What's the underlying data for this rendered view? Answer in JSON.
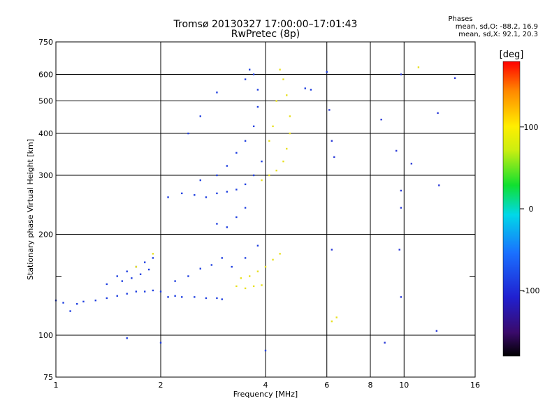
{
  "header": {
    "title": "Tromsø 20130327 17:00:00–17:01:43",
    "subtitle": "RwPretec (8p)",
    "phase_heading": "Phases",
    "phase_o": "mean, sd,O: -88.2, 16.9",
    "phase_x": "mean, sd,X:  92.1, 20.3"
  },
  "colorbar": {
    "label": "[deg]",
    "ticks": [
      {
        "value": 100,
        "label": "100"
      },
      {
        "value": 0,
        "label": "0"
      },
      {
        "value": -100,
        "label": "-100"
      }
    ],
    "range": [
      -180,
      180
    ],
    "colormap": "rainbow (black-purple-blue-cyan-green-yellow-orange-red)"
  },
  "chart_data": {
    "type": "scatter",
    "title": "Tromsø 20130327 17:00:00–17:01:43",
    "subtitle": "RwPretec (8p)",
    "xlabel": "Frequency [MHz]",
    "ylabel": "Stationary phase Virtual Height [km]",
    "x_scale": "log",
    "y_scale": "log",
    "xlim": [
      1,
      16
    ],
    "ylim": [
      75,
      750
    ],
    "x_ticks": [
      1,
      2,
      4,
      6,
      8,
      10,
      16
    ],
    "y_ticks": [
      75,
      100,
      200,
      300,
      400,
      500,
      600,
      750
    ],
    "x_grid": [
      2,
      4,
      6,
      8,
      10
    ],
    "y_grid": [
      100,
      200,
      300,
      400,
      500,
      600
    ],
    "y_minor": [
      150
    ],
    "grid": true,
    "series": [
      {
        "name": "O",
        "color": "#1f3fe0",
        "phase_mean": -88.2,
        "phase_sd": 16.9,
        "points": [
          [
            1.0,
            127
          ],
          [
            1.05,
            125
          ],
          [
            1.1,
            118
          ],
          [
            1.15,
            124
          ],
          [
            1.2,
            126
          ],
          [
            1.3,
            127
          ],
          [
            1.4,
            129
          ],
          [
            1.5,
            131
          ],
          [
            1.6,
            133
          ],
          [
            1.7,
            135
          ],
          [
            1.8,
            135
          ],
          [
            1.9,
            136
          ],
          [
            2.0,
            135
          ],
          [
            1.4,
            142
          ],
          [
            1.5,
            150
          ],
          [
            1.6,
            155
          ],
          [
            1.7,
            160
          ],
          [
            1.8,
            165
          ],
          [
            1.9,
            170
          ],
          [
            1.55,
            145
          ],
          [
            1.65,
            148
          ],
          [
            1.75,
            152
          ],
          [
            1.85,
            157
          ],
          [
            2.1,
            130
          ],
          [
            2.2,
            131
          ],
          [
            2.3,
            130
          ],
          [
            2.5,
            130
          ],
          [
            2.7,
            129
          ],
          [
            2.9,
            129
          ],
          [
            3.0,
            128
          ],
          [
            2.2,
            145
          ],
          [
            2.4,
            150
          ],
          [
            2.6,
            158
          ],
          [
            2.8,
            162
          ],
          [
            3.0,
            170
          ],
          [
            2.1,
            258
          ],
          [
            2.3,
            265
          ],
          [
            2.5,
            262
          ],
          [
            2.7,
            258
          ],
          [
            2.9,
            265
          ],
          [
            3.1,
            268
          ],
          [
            3.3,
            272
          ],
          [
            3.5,
            282
          ],
          [
            3.7,
            300
          ],
          [
            3.9,
            330
          ],
          [
            2.6,
            290
          ],
          [
            2.9,
            300
          ],
          [
            3.1,
            320
          ],
          [
            3.3,
            350
          ],
          [
            3.5,
            380
          ],
          [
            3.7,
            420
          ],
          [
            3.8,
            480
          ],
          [
            3.8,
            540
          ],
          [
            3.7,
            600
          ],
          [
            3.6,
            620
          ],
          [
            3.5,
            580
          ],
          [
            2.9,
            215
          ],
          [
            3.1,
            210
          ],
          [
            3.3,
            225
          ],
          [
            3.5,
            240
          ],
          [
            2.4,
            400
          ],
          [
            2.6,
            450
          ],
          [
            2.9,
            530
          ],
          [
            3.2,
            160
          ],
          [
            3.5,
            170
          ],
          [
            3.8,
            185
          ],
          [
            4.0,
            90
          ],
          [
            1.6,
            98
          ],
          [
            2.0,
            95
          ],
          [
            5.2,
            545
          ],
          [
            5.4,
            540
          ],
          [
            6.0,
            610
          ]
        ]
      },
      {
        "name": "X",
        "color": "#e8e020",
        "phase_mean": 92.1,
        "phase_sd": 20.3,
        "points": [
          [
            3.3,
            140
          ],
          [
            3.5,
            138
          ],
          [
            3.7,
            140
          ],
          [
            3.9,
            141
          ],
          [
            3.4,
            148
          ],
          [
            3.6,
            150
          ],
          [
            3.8,
            155
          ],
          [
            4.0,
            160
          ],
          [
            4.2,
            168
          ],
          [
            4.4,
            175
          ],
          [
            3.9,
            290
          ],
          [
            4.1,
            300
          ],
          [
            4.3,
            310
          ],
          [
            4.5,
            330
          ],
          [
            4.6,
            360
          ],
          [
            4.7,
            400
          ],
          [
            4.7,
            450
          ],
          [
            4.6,
            520
          ],
          [
            4.5,
            580
          ],
          [
            4.4,
            620
          ],
          [
            4.1,
            380
          ],
          [
            4.2,
            420
          ],
          [
            4.3,
            500
          ],
          [
            1.9,
            175
          ],
          [
            1.7,
            160
          ],
          [
            6.4,
            113
          ],
          [
            6.2,
            110
          ],
          [
            11.0,
            630
          ]
        ]
      },
      {
        "name": "scatter",
        "color": "#2a3ad8",
        "phase_mean": -100,
        "phase_sd": 20,
        "points": [
          [
            6.1,
            470
          ],
          [
            6.3,
            340
          ],
          [
            6.2,
            180
          ],
          [
            9.8,
            600
          ],
          [
            9.7,
            180
          ],
          [
            9.8,
            130
          ],
          [
            12.5,
            460
          ],
          [
            12.6,
            280
          ],
          [
            12.4,
            103
          ],
          [
            8.8,
            95
          ],
          [
            9.5,
            355
          ],
          [
            10.5,
            325
          ],
          [
            6.2,
            380
          ],
          [
            8.6,
            440
          ],
          [
            14.0,
            585
          ],
          [
            9.8,
            270
          ],
          [
            9.8,
            240
          ]
        ]
      }
    ]
  }
}
